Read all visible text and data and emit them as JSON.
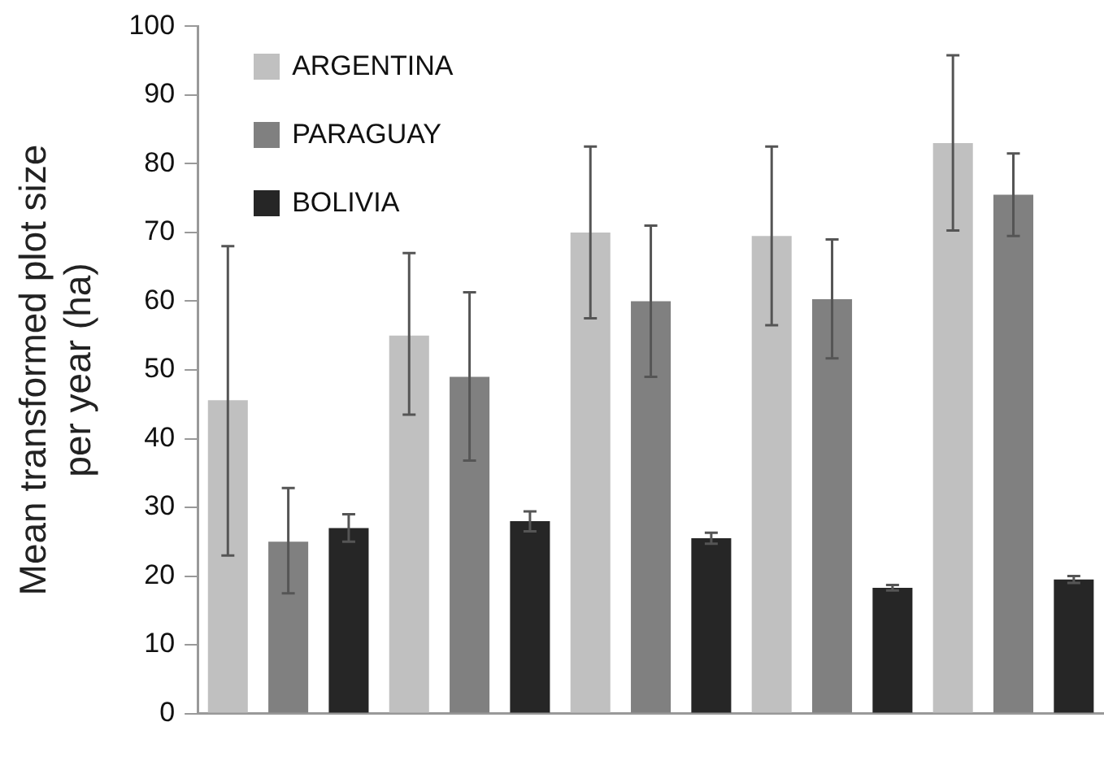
{
  "chart_data": {
    "type": "bar",
    "ylabel": "Mean transformed plot size per year (ha)",
    "categories": [
      null,
      null,
      null,
      null,
      null
    ],
    "series": [
      {
        "name": "ARGENTINA",
        "color": "#c0c0c0",
        "values": [
          45.6,
          55,
          70,
          69.5,
          83
        ],
        "errors": [
          [
            23,
            68
          ],
          [
            43.5,
            67
          ],
          [
            57.5,
            82.5
          ],
          [
            56.5,
            82.5
          ],
          [
            70.3,
            95.8
          ]
        ]
      },
      {
        "name": "PARAGUAY",
        "color": "#808080",
        "values": [
          25,
          49,
          60,
          60.3,
          75.5
        ],
        "errors": [
          [
            17.5,
            32.8
          ],
          [
            36.8,
            61.3
          ],
          [
            49,
            71
          ],
          [
            51.7,
            69
          ],
          [
            69.5,
            81.5
          ]
        ]
      },
      {
        "name": "BOLIVIA",
        "color": "#262626",
        "values": [
          27,
          28,
          25.5,
          18.3,
          19.5
        ],
        "errors": [
          [
            25,
            29
          ],
          [
            26.5,
            29.4
          ],
          [
            24.7,
            26.3
          ],
          [
            17.9,
            18.7
          ],
          [
            19,
            20
          ]
        ]
      }
    ],
    "ylim": [
      0,
      100
    ],
    "yticks": [
      0,
      10,
      20,
      30,
      40,
      50,
      60,
      70,
      80,
      90,
      100
    ],
    "grid": false,
    "legend": "top left"
  }
}
